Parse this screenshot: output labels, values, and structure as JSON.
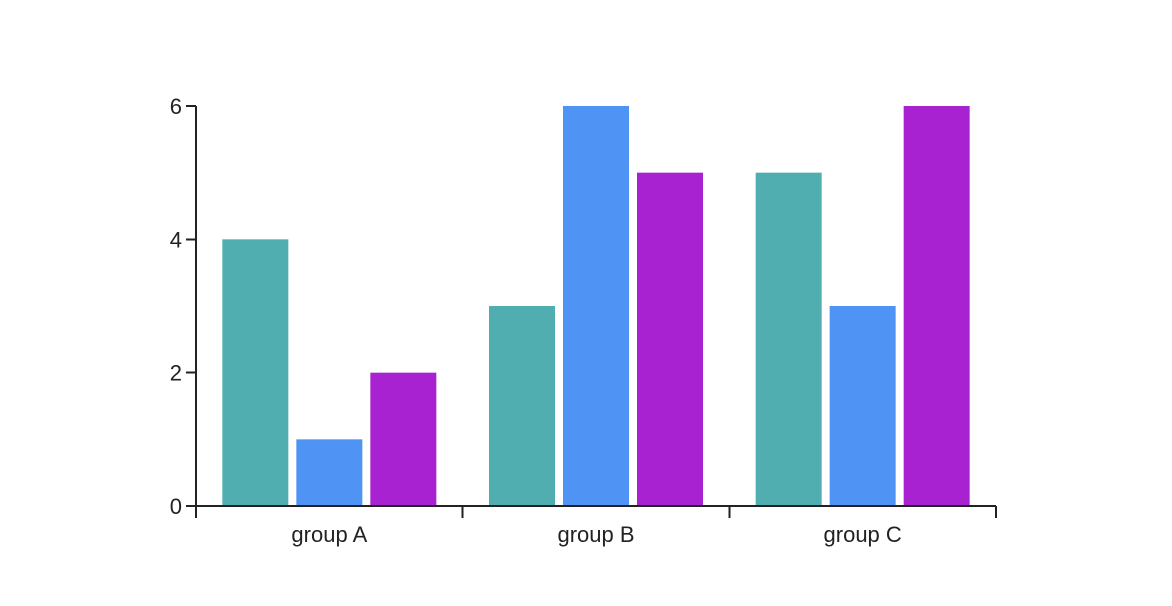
{
  "chart_data": {
    "type": "bar",
    "title": "",
    "xlabel": "",
    "ylabel": "",
    "categories": [
      "group A",
      "group B",
      "group C"
    ],
    "series": [
      {
        "values": [
          4,
          3,
          5
        ],
        "color": "#50AEB0"
      },
      {
        "values": [
          1,
          6,
          3
        ],
        "color": "#4F94F4"
      },
      {
        "values": [
          2,
          5,
          6
        ],
        "color": "#A822D1"
      }
    ],
    "ylim": [
      0,
      6
    ],
    "yticks": [
      0,
      2,
      4,
      6
    ],
    "grid": false,
    "legend": "none"
  }
}
